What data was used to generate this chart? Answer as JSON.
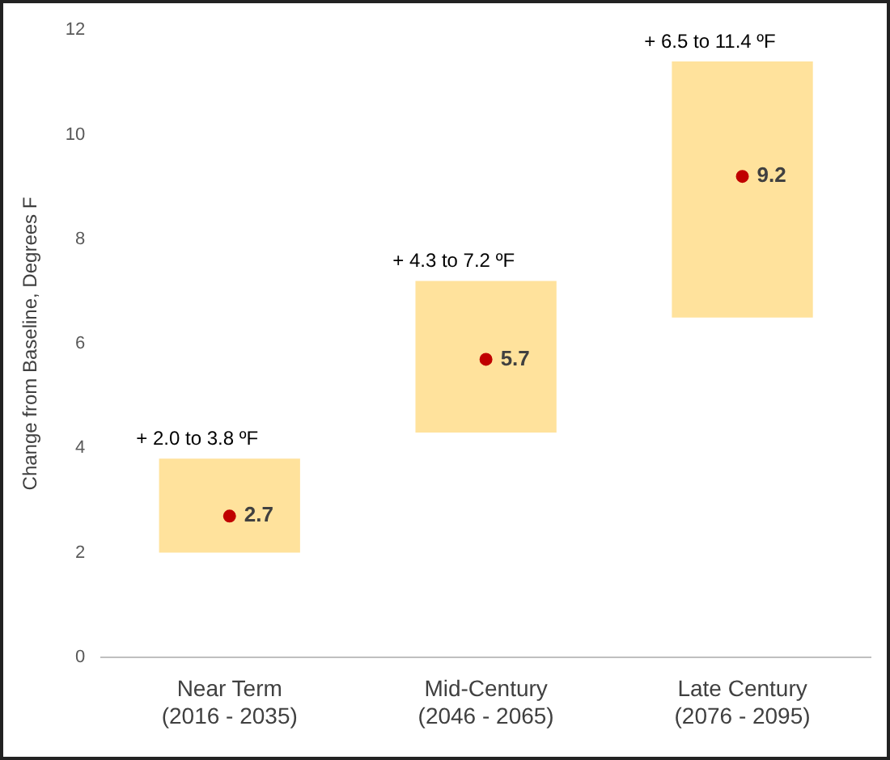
{
  "chart_data": {
    "type": "bar",
    "ylabel": "Change from Baseline, Degrees F",
    "categories": [
      "Near Term\n(2016 - 2035)",
      "Mid-Century\n(2046 - 2065)",
      "Late Century\n(2076 - 2095)"
    ],
    "series": [
      {
        "color": "#ffe29c",
        "base": [
          2.0,
          4.3,
          6.5
        ],
        "values": [
          1.8,
          2.9,
          4.9
        ]
      },
      {
        "type": "scatter",
        "color": "#c00000",
        "x": [
          "Near Term\n(2016 - 2035)",
          "Mid-Century\n(2046 - 2065)",
          "Late Century\n(2076 - 2095)"
        ],
        "values": [
          2.7,
          5.7,
          9.2
        ],
        "value_labels": [
          "2.7",
          "5.7",
          "9.2"
        ]
      }
    ],
    "ylim": [
      0,
      12
    ],
    "yticks": [
      0,
      2,
      4,
      6,
      8,
      10,
      12
    ],
    "grid": false,
    "legend": false,
    "marker": "circle",
    "annotations": [
      "+ 2.0 to 3.8 ºF",
      "+ 4.3 to 7.2 ºF",
      "+ 6.5 to 11.4 ºF"
    ]
  }
}
